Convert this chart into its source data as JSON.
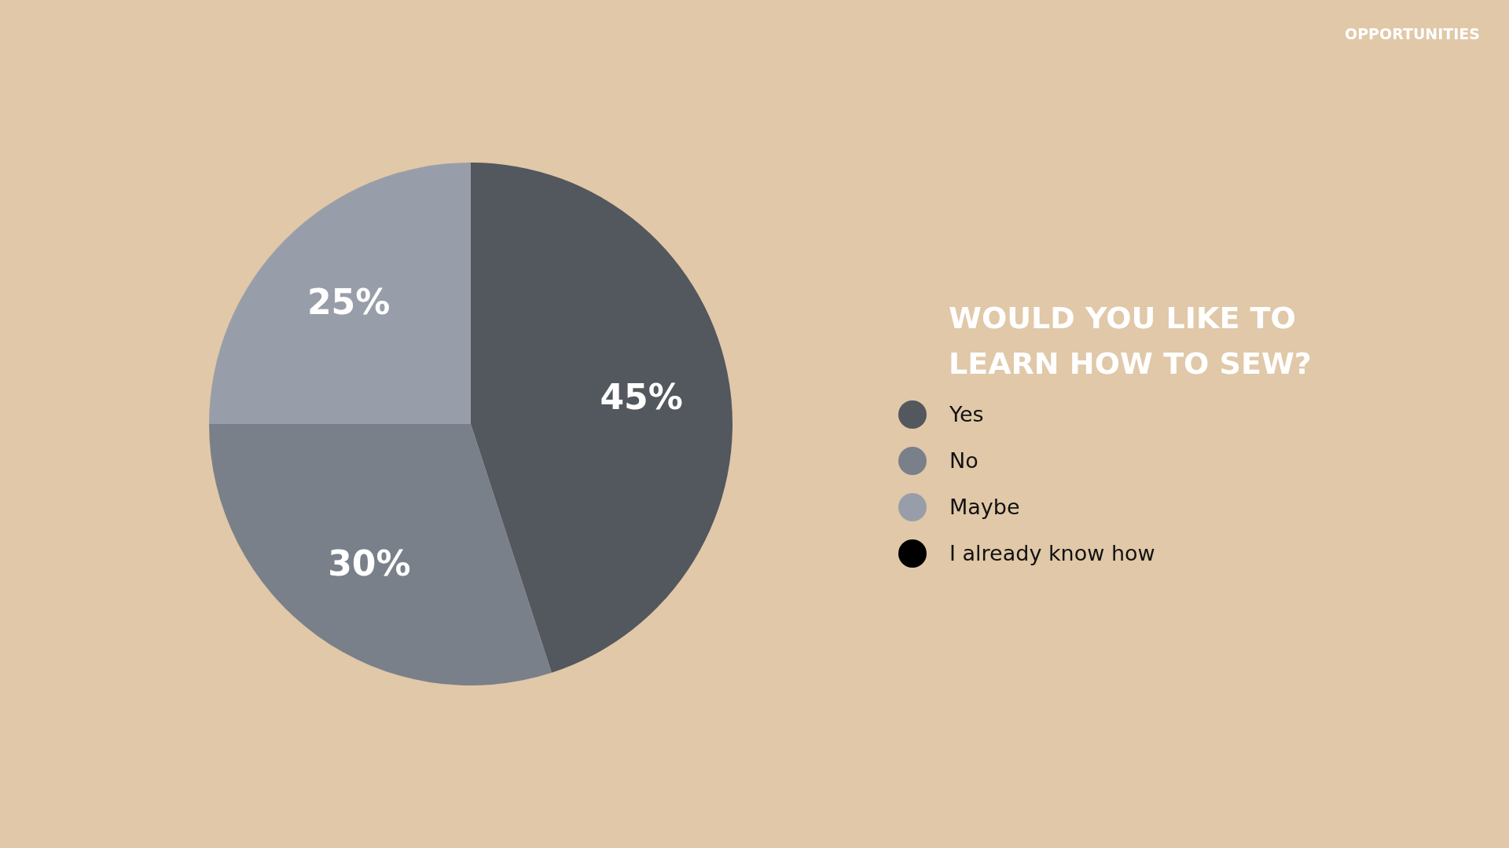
{
  "chart_data": {
    "type": "pie",
    "title": "WOULD YOU LIKE TO LEARN HOW TO SEW?",
    "annotations": [
      "OPPORTUNITIES"
    ],
    "categories": [
      "Yes",
      "No",
      "Maybe",
      "I already know how"
    ],
    "values": [
      45,
      30,
      25,
      0
    ],
    "colors": [
      "#53575e",
      "#7a8089",
      "#989ea9",
      "#000000"
    ],
    "value_labels": [
      "45%",
      "30%",
      "25%",
      null
    ],
    "legend": "right"
  }
}
